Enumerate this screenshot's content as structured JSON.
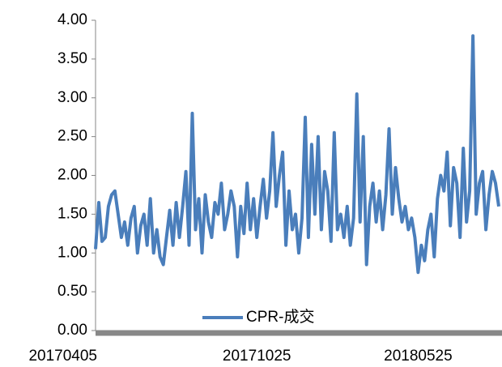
{
  "chart_data": {
    "type": "line",
    "categories": [
      "20170405",
      null,
      null,
      null,
      null,
      null,
      null,
      null,
      null,
      null,
      null,
      null,
      null,
      null,
      null,
      null,
      null,
      null,
      null,
      null,
      null,
      null,
      null,
      null,
      null,
      null,
      null,
      null,
      null,
      null,
      null,
      null,
      null,
      null,
      null,
      null,
      null,
      null,
      null,
      null,
      null,
      null,
      null,
      null,
      null,
      null,
      null,
      null,
      null,
      null,
      "20171025",
      null,
      null,
      null,
      null,
      null,
      null,
      null,
      null,
      null,
      null,
      null,
      null,
      null,
      null,
      null,
      null,
      null,
      null,
      null,
      null,
      null,
      null,
      null,
      null,
      null,
      null,
      null,
      null,
      null,
      null,
      null,
      null,
      null,
      null,
      null,
      null,
      null,
      null,
      null,
      null,
      null,
      null,
      null,
      null,
      null,
      null,
      null,
      null,
      null,
      "20180525",
      null,
      null,
      null,
      null,
      null,
      null,
      null,
      null,
      null,
      null,
      null,
      null,
      null,
      null,
      null,
      null,
      null,
      null,
      null,
      null,
      null,
      null,
      null,
      null,
      null
    ],
    "series": [
      {
        "name": "CPR-成交",
        "color": "#4a7ebb",
        "values": [
          1.05,
          1.65,
          1.15,
          1.2,
          1.6,
          1.75,
          1.8,
          1.5,
          1.2,
          1.4,
          1.1,
          1.45,
          1.6,
          1.0,
          1.35,
          1.5,
          1.1,
          1.7,
          1.0,
          1.3,
          0.95,
          0.85,
          1.2,
          1.55,
          1.1,
          1.65,
          1.2,
          1.6,
          2.05,
          1.1,
          2.8,
          1.3,
          1.7,
          1.0,
          1.75,
          1.4,
          1.2,
          1.65,
          1.5,
          1.9,
          1.3,
          1.5,
          1.8,
          1.6,
          0.95,
          1.6,
          1.25,
          1.9,
          1.3,
          1.7,
          1.2,
          1.6,
          1.95,
          1.45,
          1.8,
          2.55,
          1.6,
          2.0,
          2.3,
          1.1,
          1.8,
          1.3,
          1.5,
          1.0,
          1.45,
          2.75,
          1.2,
          2.4,
          1.5,
          2.5,
          1.3,
          2.05,
          1.8,
          1.15,
          2.55,
          1.3,
          1.5,
          1.2,
          1.6,
          1.1,
          1.45,
          3.05,
          1.4,
          2.5,
          0.85,
          1.6,
          1.9,
          1.4,
          1.8,
          1.3,
          1.75,
          2.6,
          1.5,
          2.1,
          1.7,
          1.4,
          1.6,
          1.3,
          1.45,
          1.2,
          0.75,
          1.1,
          0.9,
          1.3,
          1.5,
          0.95,
          1.7,
          2.0,
          1.8,
          2.3,
          1.35,
          2.1,
          1.9,
          1.2,
          2.35,
          1.4,
          1.8,
          3.8,
          1.5,
          1.9,
          2.05,
          1.3,
          1.75,
          2.05,
          1.9,
          1.6
        ]
      }
    ],
    "ylim": [
      0,
      4
    ],
    "yticks": [
      {
        "value": 0,
        "label": "0.00"
      },
      {
        "value": 0.5,
        "label": "0.50"
      },
      {
        "value": 1,
        "label": "1.00"
      },
      {
        "value": 1.5,
        "label": "1.50"
      },
      {
        "value": 2,
        "label": "2.00"
      },
      {
        "value": 2.5,
        "label": "2.50"
      },
      {
        "value": 3,
        "label": "3.00"
      },
      {
        "value": 3.5,
        "label": "3.50"
      },
      {
        "value": 4,
        "label": "4.00"
      }
    ],
    "legend": "bottom-center"
  }
}
